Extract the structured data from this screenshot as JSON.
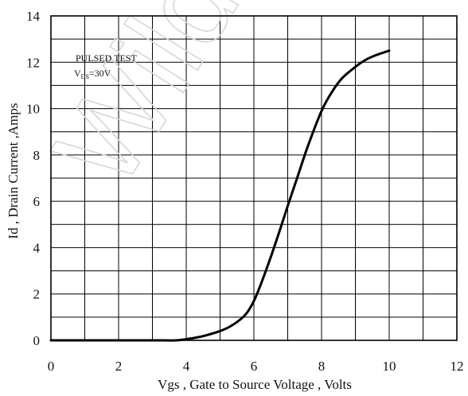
{
  "chart_data": {
    "type": "line",
    "title": "",
    "xlabel": "Vgs , Gate to Source Voltage ,   Volts",
    "ylabel": "Id , Drain Current ,Amps",
    "xlim": [
      0,
      12
    ],
    "ylim": [
      0,
      14
    ],
    "x_ticks": [
      "0",
      "2",
      "4",
      "6",
      "8",
      "10",
      "12"
    ],
    "y_ticks": [
      "0",
      "2",
      "4",
      "6",
      "8",
      "10",
      "12",
      "14"
    ],
    "x_grid_step": 1,
    "y_grid_step": 1,
    "grid": true,
    "annotation": {
      "line1": "PULSED   TEST",
      "line2_main": "V",
      "line2_sub": "DS",
      "line2_rest": "=30V"
    },
    "watermark": "Wildc",
    "series": [
      {
        "color": "#000000",
        "x": [
          0,
          1,
          2,
          3,
          3.7,
          4.0,
          4.3,
          4.6,
          5.0,
          5.3,
          5.6,
          5.8,
          6.0,
          6.2,
          6.5,
          6.8,
          7.0,
          7.3,
          7.6,
          8.0,
          8.3,
          8.6,
          9.0,
          9.3,
          9.6,
          10.0
        ],
        "y": [
          0,
          0,
          0,
          0,
          0,
          0.05,
          0.12,
          0.22,
          0.4,
          0.6,
          0.9,
          1.2,
          1.7,
          2.4,
          3.6,
          4.9,
          5.8,
          7.1,
          8.4,
          9.9,
          10.7,
          11.3,
          11.8,
          12.1,
          12.3,
          12.5
        ]
      }
    ]
  }
}
